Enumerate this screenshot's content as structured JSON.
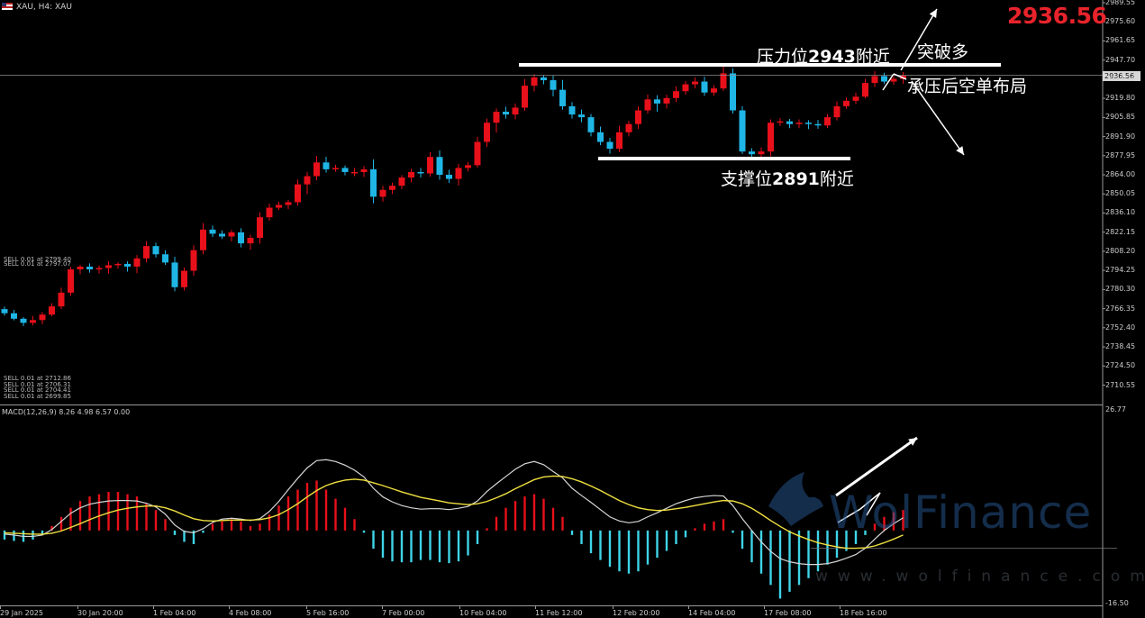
{
  "header": {
    "symbol_label": "XAU, H4:  XAU",
    "current_price_big": "2936.56",
    "current_price_box": "2936.56"
  },
  "annotations": {
    "resistance_prefix": "压力位",
    "resistance_value": "2943",
    "resistance_suffix": "附近",
    "breakout_long": "突破多",
    "short_under_pressure": "承压后空单布局",
    "support_prefix": "支撑位",
    "support_value": "2891",
    "support_suffix": "附近"
  },
  "orders": [
    "SELL 0.01 at 2799.40",
    "SELL 0.01 at 2797.07",
    "SELL 0.01 at 2712.86",
    "SELL 0.01 at 2706.31",
    "SELL 0.01 at 2704.41",
    "SELL 0.01 at 2699.85"
  ],
  "macd_label": "MACD(12,26,9) 8.26 4.98 6.57 0.00",
  "watermark": {
    "brand": "WolFinance",
    "url": "www.wolfinance.com"
  },
  "chart_data": {
    "type": "candlestick",
    "title": "",
    "price_axis": {
      "min": 2696.65,
      "max": 2989.55,
      "ticks": [
        "2989.55",
        "2975.60",
        "2961.65",
        "2947.70",
        "2933.75",
        "2919.80",
        "2905.85",
        "2891.90",
        "2877.95",
        "2864.00",
        "2850.05",
        "2836.10",
        "2822.15",
        "2808.20",
        "2794.25",
        "2780.30",
        "2766.35",
        "2752.40",
        "2738.45",
        "2724.50",
        "2710.55"
      ]
    },
    "macd_axis": {
      "min": -16.5,
      "max": 26.77,
      "ticks": [
        "26.77",
        "-16.50"
      ]
    },
    "x_ticks": [
      "29 Jan 2025",
      "30 Jan 20:00",
      "1 Feb 04:00",
      "4 Feb 08:00",
      "5 Feb 16:00",
      "7 Feb 00:00",
      "10 Feb 04:00",
      "11 Feb 12:00",
      "12 Feb 20:00",
      "14 Feb 04:00",
      "17 Feb 08:00",
      "18 Feb 16:00"
    ],
    "levels": {
      "resistance": 2943,
      "support": 2891
    },
    "close": [
      2763,
      2759,
      2756,
      2758,
      2762,
      2768,
      2778,
      2795,
      2797,
      2795,
      2796,
      2798,
      2799,
      2797,
      2803,
      2812,
      2806,
      2800,
      2782,
      2794,
      2809,
      2824,
      2821,
      2819,
      2822,
      2814,
      2818,
      2833,
      2840,
      2842,
      2844,
      2857,
      2863,
      2873,
      2868,
      2869,
      2866,
      2866,
      2868,
      2848,
      2853,
      2856,
      2862,
      2866,
      2865,
      2877,
      2864,
      2861,
      2869,
      2871,
      2888,
      2902,
      2910,
      2908,
      2913,
      2929,
      2935,
      2933,
      2926,
      2914,
      2908,
      2906,
      2895,
      2888,
      2883,
      2895,
      2901,
      2911,
      2919,
      2916,
      2920,
      2925,
      2930,
      2932,
      2924,
      2927,
      2938,
      2911,
      2881,
      2879,
      2881,
      2902,
      2903,
      2901,
      2902,
      2901,
      2900,
      2906,
      2914,
      2918,
      2921,
      2931,
      2936,
      2932,
      2934,
      2936.56
    ],
    "macd_hist": [
      -2.0,
      -2.3,
      -2.5,
      -2.0,
      -1.0,
      1.0,
      3.0,
      5.0,
      6.5,
      7.5,
      8.0,
      8.5,
      8.5,
      8.0,
      7.5,
      6.0,
      4.5,
      2.5,
      -1.0,
      -2.5,
      -3.0,
      -0.5,
      1.5,
      2.0,
      2.5,
      2.0,
      1.0,
      1.5,
      3.5,
      5.5,
      7.5,
      9.0,
      10.5,
      11.0,
      9.0,
      7.0,
      5.0,
      2.5,
      -0.5,
      -4.0,
      -6.0,
      -6.8,
      -7.0,
      -7.0,
      -6.5,
      -6.5,
      -7.0,
      -7.2,
      -6.8,
      -5.5,
      -3.0,
      0.5,
      3.0,
      5.0,
      6.5,
      7.5,
      8.0,
      7.0,
      5.0,
      3.0,
      -1.0,
      -3.0,
      -5.0,
      -6.5,
      -8.0,
      -9.0,
      -9.5,
      -9.0,
      -7.5,
      -6.0,
      -4.5,
      -3.0,
      -1.5,
      0.5,
      1.5,
      2.0,
      2.5,
      -0.5,
      -4.0,
      -7.0,
      -9.5,
      -12.0,
      -15.0,
      -13.5,
      -12.0,
      -10.5,
      -9.0,
      -7.5,
      -6.0,
      -4.5,
      -3.0,
      -1.0,
      1.5,
      3.0,
      4.0,
      4.5
    ],
    "macd_line": [
      -0.8,
      -1.0,
      -1.3,
      -1.3,
      -1.0,
      0.2,
      2.0,
      3.8,
      5.0,
      5.8,
      6.2,
      6.5,
      6.6,
      6.6,
      6.5,
      6.0,
      5.2,
      3.6,
      1.2,
      -0.2,
      -0.5,
      0.4,
      1.8,
      2.5,
      2.7,
      2.5,
      2.2,
      2.6,
      4.2,
      6.4,
      9.0,
      11.5,
      13.8,
      15.4,
      15.6,
      15.2,
      14.4,
      13.3,
      11.8,
      9.3,
      7.4,
      6.3,
      5.5,
      5.0,
      4.7,
      4.8,
      4.8,
      4.6,
      4.9,
      5.3,
      6.5,
      8.6,
      10.3,
      11.9,
      13.5,
      14.7,
      15.2,
      14.5,
      13.0,
      11.6,
      9.3,
      7.7,
      6.2,
      4.6,
      3.0,
      2.1,
      1.7,
      2.0,
      3.0,
      3.9,
      4.9,
      5.9,
      6.6,
      7.2,
      7.5,
      7.7,
      7.6,
      5.5,
      2.6,
      0.0,
      -2.5,
      -4.6,
      -6.2,
      -6.9,
      -7.3,
      -7.5,
      -7.5,
      -7.3,
      -6.8,
      -6.1,
      -5.3,
      -3.9,
      -1.9,
      0.0,
      1.5,
      2.8
    ],
    "signal_line": [
      -0.5,
      -0.6,
      -0.7,
      -0.8,
      -0.8,
      -0.6,
      -0.1,
      0.7,
      1.5,
      2.4,
      3.2,
      3.9,
      4.5,
      4.9,
      5.2,
      5.4,
      5.4,
      5.0,
      4.3,
      3.4,
      2.6,
      2.2,
      2.1,
      2.2,
      2.3,
      2.3,
      2.3,
      2.4,
      2.8,
      3.5,
      4.6,
      5.9,
      7.4,
      8.8,
      9.9,
      10.6,
      11.1,
      11.3,
      11.1,
      10.5,
      9.9,
      9.2,
      8.5,
      7.9,
      7.3,
      6.9,
      6.5,
      6.1,
      5.9,
      5.7,
      5.9,
      6.4,
      7.2,
      8.1,
      9.2,
      10.2,
      11.2,
      11.8,
      12.0,
      11.9,
      11.4,
      10.7,
      9.8,
      8.8,
      7.7,
      6.6,
      5.7,
      5.0,
      4.6,
      4.4,
      4.5,
      4.8,
      5.1,
      5.5,
      5.9,
      6.3,
      6.6,
      6.5,
      5.9,
      4.9,
      3.6,
      2.2,
      0.9,
      -0.3,
      -1.2,
      -2.0,
      -2.7,
      -3.2,
      -3.6,
      -3.9,
      -3.9,
      -3.8,
      -3.4,
      -2.7,
      -1.9,
      -1.0
    ]
  }
}
